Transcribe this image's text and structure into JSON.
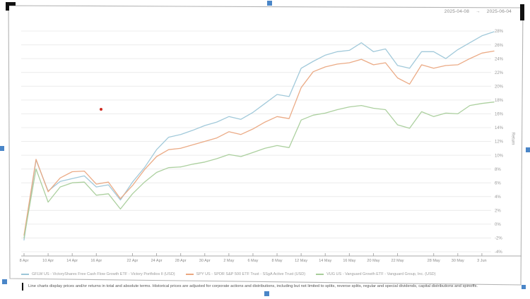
{
  "header": {
    "date_start": "2025-04-08",
    "arrow": "→",
    "date_end": "2025-06-04"
  },
  "chart_data": {
    "type": "line",
    "title": "",
    "ylabel": "Return",
    "y_tick_suffix": "%",
    "ylim": [
      -4,
      28
    ],
    "y_tick_step": 2,
    "grid": true,
    "legend_position": "bottom",
    "x_dates": [
      "8 Apr",
      "9 Apr",
      "10 Apr",
      "11 Apr",
      "14 Apr",
      "15 Apr",
      "16 Apr",
      "17 Apr",
      "21 Apr",
      "22 Apr",
      "23 Apr",
      "24 Apr",
      "25 Apr",
      "28 Apr",
      "29 Apr",
      "30 Apr",
      "1 May",
      "2 May",
      "5 May",
      "6 May",
      "7 May",
      "8 May",
      "9 May",
      "12 May",
      "13 May",
      "14 May",
      "15 May",
      "16 May",
      "19 May",
      "20 May",
      "21 May",
      "22 May",
      "23 May",
      "27 May",
      "28 May",
      "29 May",
      "30 May",
      "2 Jun",
      "3 Jun",
      "4 Jun"
    ],
    "x_tick_indices": [
      0,
      2,
      4,
      6,
      9,
      11,
      13,
      15,
      17,
      19,
      21,
      23,
      25,
      27,
      29,
      31,
      34,
      36,
      38
    ],
    "x_tick_labels": [
      "8 Apr",
      "10 Apr",
      "14 Apr",
      "16 Apr",
      "22 Apr",
      "24 Apr",
      "28 Apr",
      "30 Apr",
      "2 May",
      "6 May",
      "8 May",
      "12 May",
      "14 May",
      "16 May",
      "20 May",
      "22 May",
      "28 May",
      "30 May",
      "3 Jun"
    ],
    "series": [
      {
        "name": "GFLW US - VictoryShares Free Cash Flow Growth ETF - Victory Portfolios II (USD)",
        "color": "#9cc6d8",
        "values": [
          -2.3,
          9.3,
          4.8,
          6.2,
          6.6,
          7.0,
          5.4,
          5.7,
          3.5,
          6.1,
          8.2,
          10.8,
          12.6,
          13.0,
          13.6,
          14.3,
          14.8,
          15.6,
          15.2,
          16.2,
          17.5,
          18.8,
          18.5,
          22.6,
          23.6,
          24.5,
          25.0,
          25.2,
          26.3,
          25.0,
          25.4,
          23.0,
          22.6,
          25.0,
          25.0,
          24.0,
          25.3,
          26.3,
          27.3,
          27.9
        ]
      },
      {
        "name": "SPY US - SPDR S&P 500 ETF Trust - SSgA Active Trust (USD)",
        "color": "#eaa780",
        "values": [
          -1.6,
          9.4,
          4.7,
          6.7,
          7.6,
          7.7,
          5.8,
          6.1,
          3.7,
          5.6,
          7.9,
          9.8,
          10.8,
          11.0,
          11.5,
          12.0,
          12.5,
          13.4,
          13.0,
          13.8,
          14.8,
          15.6,
          15.3,
          19.8,
          22.1,
          22.8,
          23.2,
          23.4,
          23.9,
          23.1,
          23.4,
          21.2,
          20.3,
          23.1,
          22.6,
          23.0,
          23.1,
          24.0,
          24.8,
          25.1
        ]
      },
      {
        "name": "VUG US - Vanguard Growth ETF - Vanguard Group, Inc. (USD)",
        "color": "#a8cd9a",
        "values": [
          -2.0,
          8.0,
          3.2,
          5.4,
          6.0,
          6.1,
          4.2,
          4.4,
          2.2,
          4.4,
          6.1,
          7.5,
          8.2,
          8.3,
          8.7,
          9.0,
          9.5,
          10.1,
          9.8,
          10.4,
          11.0,
          11.4,
          11.1,
          15.1,
          15.8,
          16.1,
          16.6,
          17.0,
          17.2,
          16.8,
          16.6,
          14.4,
          13.9,
          16.3,
          15.6,
          16.1,
          16.0,
          17.2,
          17.5,
          17.7
        ]
      }
    ]
  },
  "annotation": {
    "red_marker_color": "#cf2b21"
  },
  "footnote": "Line charts display prices and/or returns in total and absolute terms. Historical prices are adjusted for corporate actions and distributions, including but not limited to splits, reverse splits, regular and special dividends, capital distributions and spinoffs."
}
